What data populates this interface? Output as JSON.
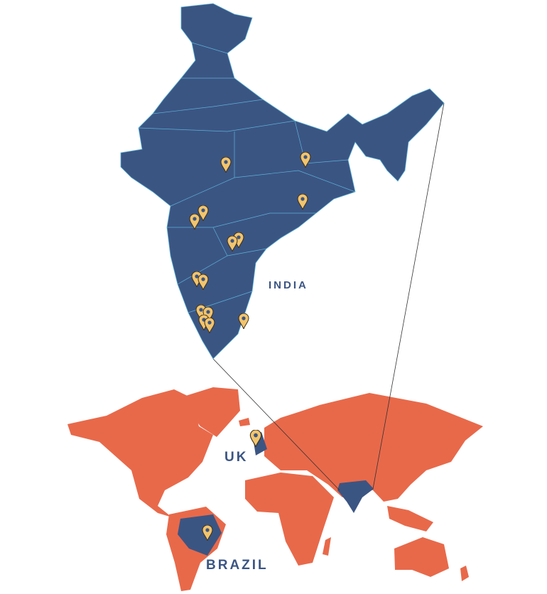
{
  "labels": {
    "india": "INDIA",
    "uk": "UK",
    "brazil": "BRAZIL"
  }
}
